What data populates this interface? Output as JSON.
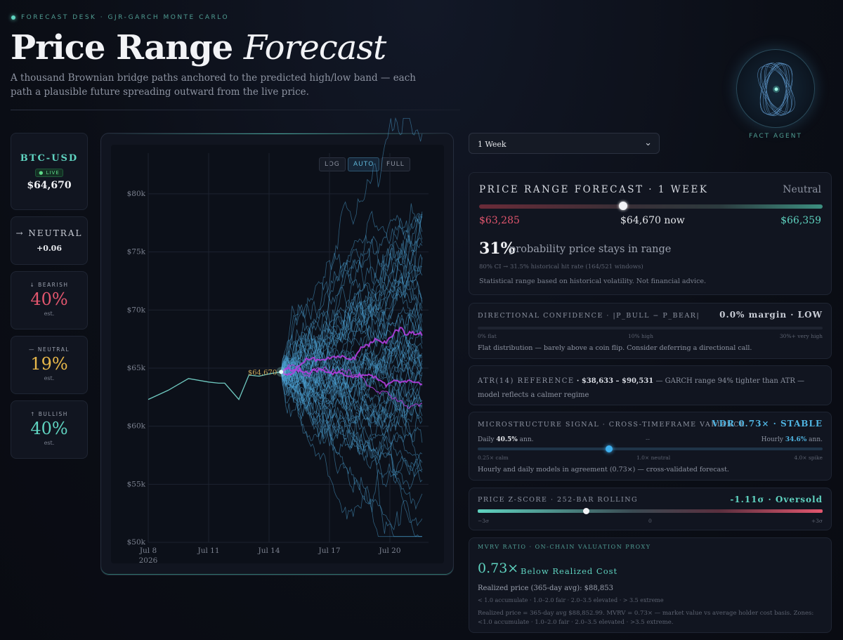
{
  "header": {
    "kicker": "FORECAST DESK · GJR-GARCH MONTE CARLO",
    "title_main": "Price Range",
    "title_italic": "Forecast",
    "subtitle": "A thousand Brownian bridge paths anchored to the predicted high/low band — each path a plausible future spreading outward from the live price."
  },
  "agent": {
    "label": "FACT AGENT"
  },
  "sidebar": {
    "ticker": {
      "symbol": "BTC-USD",
      "live": "● LIVE",
      "price": "$64,670"
    },
    "direction": {
      "label": "→ NEUTRAL",
      "value": "+0.06"
    },
    "bearish": {
      "label": "↓ BEARISH",
      "value": "40%",
      "est": "est.",
      "color": "#e2566e"
    },
    "neutral": {
      "label": "— NEUTRAL",
      "value": "19%",
      "est": "est.",
      "color": "#e8b84a"
    },
    "bullish": {
      "label": "↑ BULLISH",
      "value": "40%",
      "est": "est.",
      "color": "#5fd3c0"
    }
  },
  "chart_controls": {
    "log": "LOG",
    "auto": "AUTO",
    "full": "FULL",
    "active": "AUTO"
  },
  "chart_data": {
    "type": "line",
    "y_ticks": [
      "$80k",
      "$75k",
      "$70k",
      "$65k",
      "$60k",
      "$55k",
      "$50k"
    ],
    "x_ticks": [
      "Jul 8",
      "Jul 11",
      "Jul 14",
      "Jul 17",
      "Jul 20"
    ],
    "x_year": "2026",
    "ylim": [
      50000,
      83500
    ],
    "history": {
      "x": [
        0,
        1,
        2,
        3,
        3.5,
        3.8,
        4.5,
        5,
        5.5,
        6,
        6.6
      ],
      "y": [
        62300,
        63100,
        64100,
        63800,
        63700,
        63700,
        62300,
        64400,
        64300,
        64500,
        64670
      ]
    },
    "live_label": "$64,670",
    "live_price": 64670,
    "forecast_start_day": 6.6,
    "forecast_end_day": 13.6,
    "forecast_paths": 60,
    "colors": {
      "history": "#6fc9c0",
      "paths": "#4a9ed0",
      "median": "#b43ee0",
      "grid": "#1c2230"
    }
  },
  "horizon_select": {
    "value": "1 Week"
  },
  "forecast": {
    "title": "PRICE RANGE FORECAST · 1 WEEK",
    "bias": "Neutral",
    "low": "$63,285",
    "now": "$64,670 now",
    "high": "$66,359",
    "now_position": 0.42,
    "probability": "31%",
    "probability_text": "probability price stays in range",
    "ci_text": "80% CI → 31.5% historical hit rate (164/521 windows)",
    "disclaimer": "Statistical range based on historical volatility. Not financial advice."
  },
  "directional": {
    "title": "DIRECTIONAL CONFIDENCE · |P_BULL − P_BEAR|",
    "value": "0.0% margin · LOW",
    "scale": [
      "0% flat",
      "10% high",
      "30%+ very high"
    ],
    "note": "Flat distribution — barely above a coin flip. Consider deferring a directional call."
  },
  "atr": {
    "title": "ATR(14) REFERENCE",
    "range": "· $38,633 – $90,531",
    "text": "— GARCH range 94% tighter than ATR — model reflects a calmer regime"
  },
  "micro": {
    "title": "MICROSTRUCTURE SIGNAL · CROSS-TIMEFRAME VARIANCE",
    "value": "VDR 0.73× · STABLE",
    "daily_label": "Daily",
    "daily_value": "40.5%",
    "daily_unit": "ann.",
    "mid": "--",
    "hourly_label": "Hourly",
    "hourly_value": "34.6%",
    "hourly_unit": "ann.",
    "scale": [
      "0.25× calm",
      "1.0× neutral",
      "4.0× spike"
    ],
    "position": 0.38,
    "note": "Hourly and daily models in agreement (0.73×) — cross-validated forecast."
  },
  "zscore": {
    "title": "PRICE Z-SCORE · 252-BAR ROLLING",
    "value": "-1.11σ · Oversold",
    "scale": [
      "−3σ",
      "0",
      "+3σ"
    ],
    "position": 0.315
  },
  "mvrv": {
    "title": "MVRV RATIO · ON-CHAIN VALUATION PROXY",
    "value": "0.73×",
    "label": "Below Realized Cost",
    "realized": "Realized price (365-day avg): $88,853",
    "zones": "< 1.0 accumulate · 1.0–2.0 fair · 2.0–3.5 elevated · > 3.5 extreme",
    "footnote": "Realized price = 365-day avg $88,852.99. MVRV = 0.73× — market value vs average holder cost basis. Zones: <1.0 accumulate · 1.0–2.0 fair · 2.0–3.5 elevated · >3.5 extreme."
  }
}
